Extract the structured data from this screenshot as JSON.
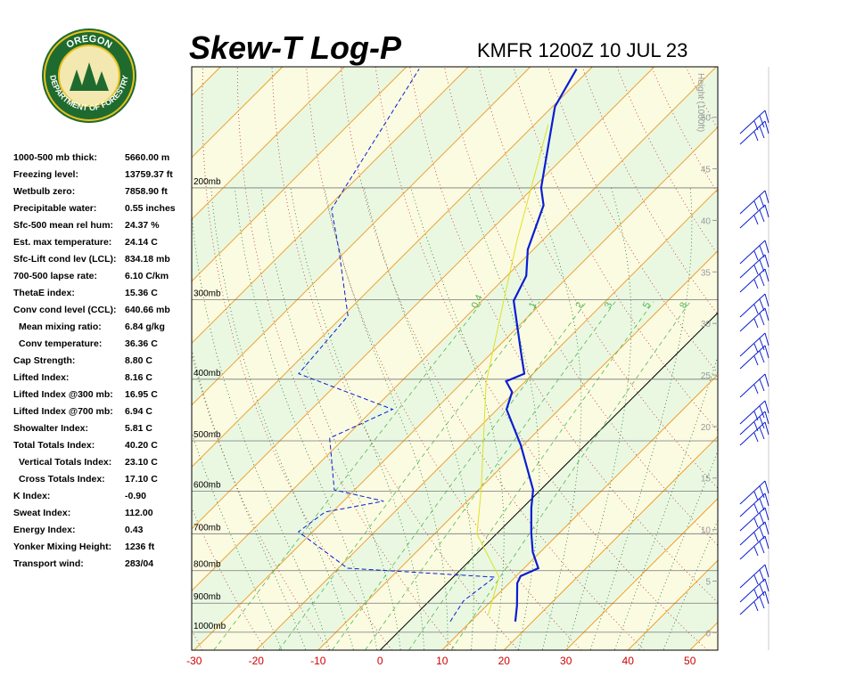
{
  "header": {
    "title": "Skew-T Log-P",
    "station": "KMFR 1200Z 10 JUL 23"
  },
  "logo": {
    "top": "OREGON",
    "bottom": "DEPARTMENT OF FORESTRY"
  },
  "indices": [
    [
      "1000-500 mb thick:",
      "5660.00 m"
    ],
    [
      "Freezing level:",
      "13759.37 ft"
    ],
    [
      "Wetbulb zero:",
      "7858.90 ft"
    ],
    [
      "Precipitable water:",
      "0.55 inches"
    ],
    [
      "Sfc-500 mean rel hum:",
      "24.37 %"
    ],
    [
      "Est. max temperature:",
      "24.14 C"
    ],
    [
      "Sfc-Lift cond lev (LCL):",
      "834.18 mb"
    ],
    [
      "700-500 lapse rate:",
      "6.10 C/km"
    ],
    [
      "ThetaE index:",
      "15.36 C"
    ],
    [
      "Conv cond level (CCL):",
      "640.66 mb"
    ],
    [
      "Mean mixing ratio:",
      "6.84 g/kg"
    ],
    [
      "Conv temperature:",
      "36.36 C"
    ],
    [
      "Cap Strength:",
      "8.80 C"
    ],
    [
      "Lifted Index:",
      "8.16 C"
    ],
    [
      "Lifted Index @300 mb:",
      "16.95 C"
    ],
    [
      "Lifted Index @700 mb:",
      "6.94 C"
    ],
    [
      "Showalter Index:",
      "5.81 C"
    ],
    [
      "Total Totals Index:",
      "40.20 C"
    ],
    [
      "Vertical Totals Index:",
      "23.10 C"
    ],
    [
      "Cross Totals Index:",
      "17.10 C"
    ],
    [
      "K Index:",
      "-0.90"
    ],
    [
      "Sweat Index:",
      "112.00"
    ],
    [
      "Energy Index:",
      "0.43"
    ],
    [
      "Yonker Mixing Height:",
      "1236 ft"
    ],
    [
      "Transport wind:",
      "283/04"
    ]
  ],
  "chart_data": {
    "type": "skewt",
    "xlim": [
      -30.4,
      54.5
    ],
    "xticks": [
      -30,
      -20,
      -10,
      0,
      10,
      20,
      30,
      40,
      50
    ],
    "ylim": [
      1067,
      129
    ],
    "log_y": true,
    "yticks": [
      {
        "value": 1000,
        "label": "1000mb"
      },
      {
        "value": 900,
        "label": "900mb"
      },
      {
        "value": 800,
        "label": "800mb"
      },
      {
        "value": 700,
        "label": "700mb"
      },
      {
        "value": 600,
        "label": "600mb"
      },
      {
        "value": 500,
        "label": "500mb"
      },
      {
        "value": 400,
        "label": "400mb"
      },
      {
        "value": 300,
        "label": "300mb"
      },
      {
        "value": 200,
        "label": "200mb"
      }
    ],
    "y2_label": "Height (1000ft)",
    "y2lim": [
      -1.7,
      54.9
    ],
    "y2ticks": [
      0,
      5,
      10,
      15,
      20,
      25,
      30,
      35,
      40,
      45,
      50
    ],
    "mixing_ratio_lines": [
      0.4,
      1,
      2,
      3,
      5,
      8
    ],
    "series": [
      {
        "color": "#0a1ed2",
        "style": "solid",
        "pressure": [
          962,
          908,
          837,
          816,
          793,
          748,
          697,
          637,
          597,
          508,
          446,
          419,
          403,
          392,
          362,
          301,
          275,
          250,
          213,
          200,
          181,
          149,
          130
        ],
        "values": [
          17.2,
          14.9,
          11.3,
          10.7,
          12.3,
          8.8,
          5.4,
          1.4,
          -1.2,
          -10.4,
          -18.5,
          -20.4,
          -23.1,
          -21.4,
          -25.5,
          -34.9,
          -36.9,
          -40.9,
          -45.5,
          -48.7,
          -52.4,
          -59.6,
          -62.2
        ]
      },
      {
        "color": "#0a1ed2",
        "style": "dashed",
        "pressure": [
          962,
          893,
          819,
          793,
          695,
          647,
          622,
          597,
          495,
          446,
          392,
          318,
          250,
          216,
          130
        ],
        "values": [
          6.7,
          5.5,
          6.7,
          -18.5,
          -32.3,
          -31.2,
          -23.5,
          -33.3,
          -42.4,
          -36.9,
          -57.8,
          -59.2,
          -71.4,
          -79.1,
          -87.6
        ]
      },
      {
        "color": "#e0e020",
        "style": "solid",
        "pressure": [
          938,
          819,
          701,
          597,
          405,
          301,
          242,
          159
        ],
        "values": [
          11.7,
          7.4,
          -3.1,
          -9.6,
          -26.1,
          -36.5,
          -44.1,
          -57.8
        ]
      }
    ]
  }
}
